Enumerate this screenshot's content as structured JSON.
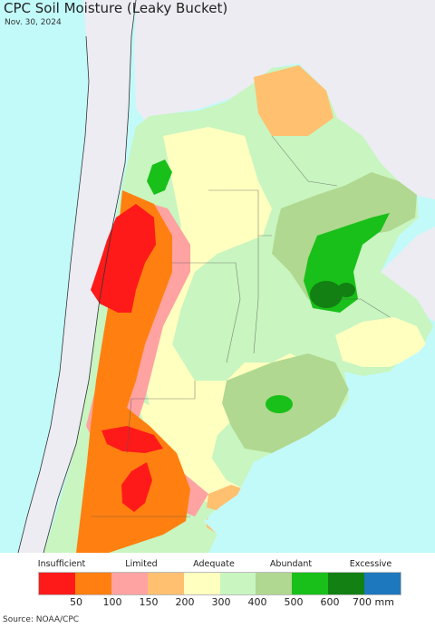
{
  "header": {
    "title": "CPC Soil Moisture (Leaky Bucket)",
    "date": "Nov. 30, 2024"
  },
  "legend": {
    "category_labels": [
      "Insufficient",
      "Limited",
      "Adequate",
      "Abundant",
      "Excessive"
    ],
    "tick_labels": [
      "50",
      "100",
      "150",
      "200",
      "300",
      "400",
      "500",
      "600",
      "700 mm"
    ],
    "colors": [
      "#ff1a1a",
      "#ff8010",
      "#ffa2a2",
      "#ffc070",
      "#ffffc0",
      "#c8f5c0",
      "#b0d890",
      "#19c019",
      "#128012",
      "#1e78be"
    ]
  },
  "source": "Source: NOAA/CPC",
  "map_colors": {
    "ocean": "#c2fafa",
    "outside_land": "#ececf2",
    "red": "#ff1a1a",
    "orange": "#ff8010",
    "pink": "#ffa2a2",
    "light_orange": "#ffc070",
    "cream": "#ffffc0",
    "pale_green": "#c8f5c0",
    "sage": "#b0d890",
    "green": "#19c019",
    "dark_green": "#128012"
  }
}
